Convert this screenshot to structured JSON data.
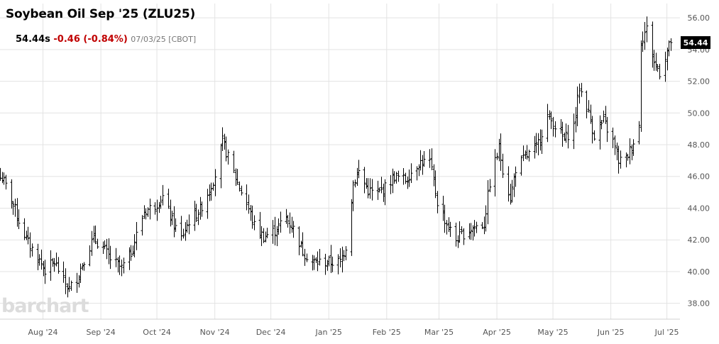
{
  "header": {
    "title": "Soybean Oil Sep '25 (ZLU25)",
    "price": "54.44s",
    "change": "-0.46 (-0.84%)",
    "meta": "07/03/25 [CBOT]"
  },
  "watermark": "barchart",
  "colors": {
    "bar": "#000000",
    "grid": "#e3e3e3",
    "change_negative": "#c00000"
  },
  "chart_data": {
    "type": "ohlc",
    "title": "Soybean Oil Sep '25 (ZLU25)",
    "last_value": 54.44,
    "last_label": "54.44",
    "ylim": [
      37.0,
      56.9
    ],
    "y_ticks": [
      "38.00",
      "40.00",
      "42.00",
      "44.00",
      "46.00",
      "48.00",
      "50.00",
      "52.00",
      "54.00",
      "56.00"
    ],
    "x_ticks": [
      "Aug '24",
      "Sep '24",
      "Oct '24",
      "Nov '24",
      "Dec '24",
      "Jan '25",
      "Feb '25",
      "Mar '25",
      "Apr '25",
      "May '25",
      "Jun '25",
      "Jul '25"
    ],
    "x_tick_dates": [
      "2024-08-01",
      "2024-09-01",
      "2024-10-01",
      "2024-11-01",
      "2024-12-01",
      "2025-01-01",
      "2025-02-01",
      "2025-03-01",
      "2025-04-01",
      "2025-05-01",
      "2025-06-01",
      "2025-07-01"
    ],
    "x_range": [
      "2024-07-09",
      "2025-07-08"
    ],
    "grid": true,
    "price_points": [
      [
        "2024-07-10",
        45.9
      ],
      [
        "2024-07-15",
        44.6
      ],
      [
        "2024-07-19",
        43.2
      ],
      [
        "2024-07-24",
        41.8
      ],
      [
        "2024-07-30",
        40.7
      ],
      [
        "2024-08-02",
        40.1
      ],
      [
        "2024-08-07",
        40.6
      ],
      [
        "2024-08-12",
        39.4
      ],
      [
        "2024-08-15",
        38.9
      ],
      [
        "2024-08-19",
        39.6
      ],
      [
        "2024-08-23",
        40.8
      ],
      [
        "2024-08-28",
        42.1
      ],
      [
        "2024-09-02",
        41.5
      ],
      [
        "2024-09-06",
        40.8
      ],
      [
        "2024-09-12",
        40.2
      ],
      [
        "2024-09-17",
        41.2
      ],
      [
        "2024-09-24",
        43.8
      ],
      [
        "2024-09-30",
        44.2
      ],
      [
        "2024-10-04",
        44.7
      ],
      [
        "2024-10-09",
        43.2
      ],
      [
        "2024-10-14",
        42.1
      ],
      [
        "2024-10-18",
        43.2
      ],
      [
        "2024-10-24",
        43.9
      ],
      [
        "2024-10-29",
        45.2
      ],
      [
        "2024-11-01",
        46.1
      ],
      [
        "2024-11-05",
        48.2
      ],
      [
        "2024-11-08",
        47.2
      ],
      [
        "2024-11-13",
        45.6
      ],
      [
        "2024-11-18",
        44.3
      ],
      [
        "2024-11-22",
        42.9
      ],
      [
        "2024-11-27",
        42.2
      ],
      [
        "2024-12-03",
        42.6
      ],
      [
        "2024-12-09",
        43.4
      ],
      [
        "2024-12-13",
        42.7
      ],
      [
        "2024-12-18",
        41.3
      ],
      [
        "2024-12-23",
        40.6
      ],
      [
        "2024-12-30",
        40.6
      ],
      [
        "2025-01-07",
        40.6
      ],
      [
        "2025-01-10",
        41.6
      ],
      [
        "2025-01-14",
        45.6
      ],
      [
        "2025-01-17",
        46.3
      ],
      [
        "2025-01-22",
        45.1
      ],
      [
        "2025-01-27",
        44.9
      ],
      [
        "2025-01-31",
        45.3
      ],
      [
        "2025-02-05",
        46.0
      ],
      [
        "2025-02-11",
        45.8
      ],
      [
        "2025-02-18",
        46.9
      ],
      [
        "2025-02-24",
        46.9
      ],
      [
        "2025-02-28",
        44.4
      ],
      [
        "2025-03-05",
        43.0
      ],
      [
        "2025-03-10",
        42.0
      ],
      [
        "2025-03-14",
        42.4
      ],
      [
        "2025-03-19",
        42.8
      ],
      [
        "2025-03-25",
        43.0
      ],
      [
        "2025-03-28",
        45.6
      ],
      [
        "2025-04-02",
        47.8
      ],
      [
        "2025-04-04",
        46.5
      ],
      [
        "2025-04-08",
        44.6
      ],
      [
        "2025-04-11",
        46.5
      ],
      [
        "2025-04-16",
        47.2
      ],
      [
        "2025-04-22",
        47.8
      ],
      [
        "2025-04-28",
        49.8
      ],
      [
        "2025-05-02",
        49.2
      ],
      [
        "2025-05-07",
        48.3
      ],
      [
        "2025-05-12",
        49.2
      ],
      [
        "2025-05-15",
        51.6
      ],
      [
        "2025-05-19",
        50.4
      ],
      [
        "2025-05-23",
        48.6
      ],
      [
        "2025-05-28",
        49.5
      ],
      [
        "2025-06-02",
        48.2
      ],
      [
        "2025-06-05",
        47.0
      ],
      [
        "2025-06-09",
        47.1
      ],
      [
        "2025-06-13",
        48.2
      ],
      [
        "2025-06-16",
        49.2
      ],
      [
        "2025-06-17",
        54.6
      ],
      [
        "2025-06-20",
        55.3
      ],
      [
        "2025-06-24",
        53.2
      ],
      [
        "2025-06-27",
        52.6
      ],
      [
        "2025-07-01",
        53.9
      ],
      [
        "2025-07-03",
        54.44
      ]
    ]
  }
}
